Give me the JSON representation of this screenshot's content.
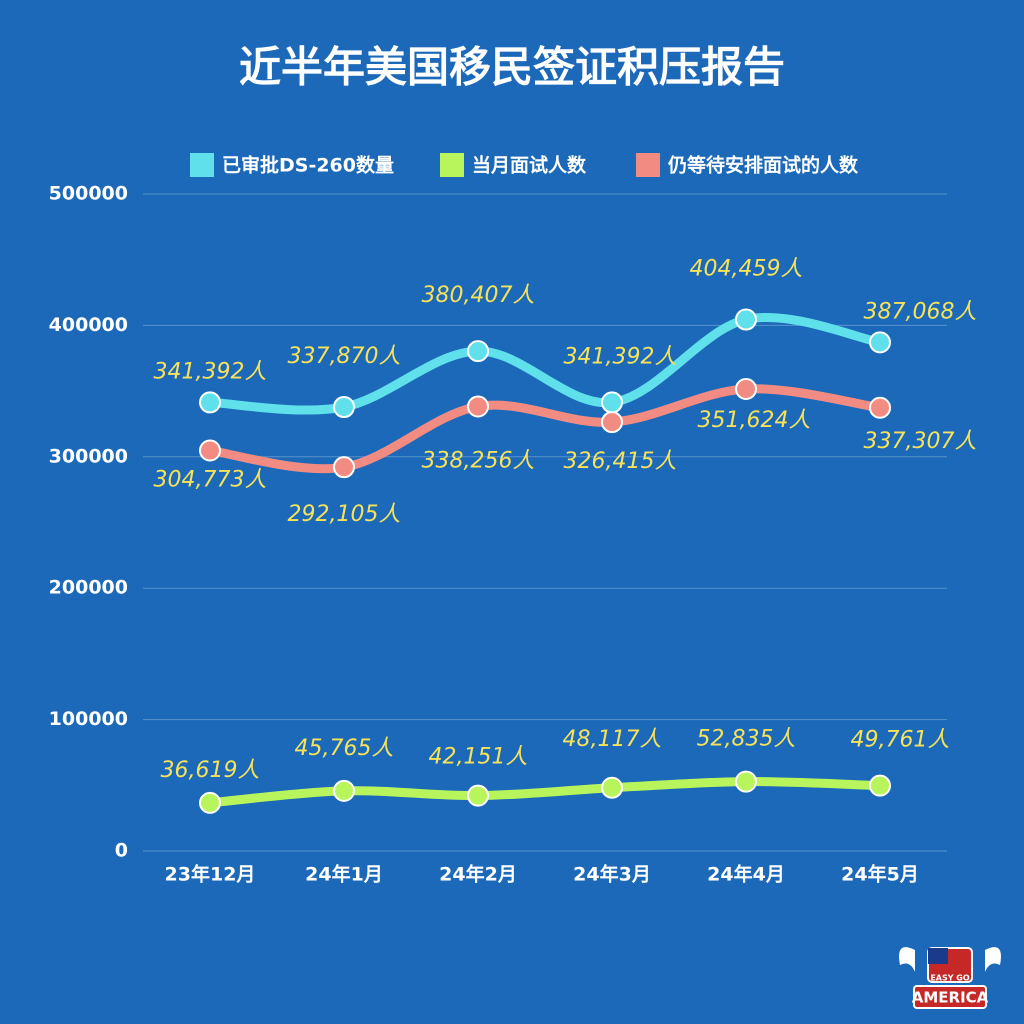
{
  "chart_data": {
    "type": "line",
    "title": "近半年美国移民签证积压报告",
    "categories": [
      "23年12月",
      "24年1月",
      "24年2月",
      "24年3月",
      "24年4月",
      "24年5月"
    ],
    "series": [
      {
        "name": "已审批DS-260数量",
        "color": "#5fe0ea",
        "values": [
          341392,
          337870,
          380407,
          341392,
          404459,
          387068
        ],
        "value_labels": [
          "341,392人",
          "337,870人",
          "380,407人",
          "341,392人",
          "404,459人",
          "387,068人"
        ]
      },
      {
        "name": "当月面试人数",
        "color": "#b8f55c",
        "values": [
          36619,
          45765,
          42151,
          48117,
          52835,
          49761
        ],
        "value_labels": [
          "36,619人",
          "45,765人",
          "42,151人",
          "48,117人",
          "52,835人",
          "49,761人"
        ]
      },
      {
        "name": "仍等待安排面试的人数",
        "color": "#f28b82",
        "values": [
          304773,
          292105,
          338256,
          326415,
          351624,
          337307
        ],
        "value_labels": [
          "304,773人",
          "292,105人",
          "338,256人",
          "326,415人",
          "351,624人",
          "337,307人"
        ]
      }
    ],
    "ylim": [
      0,
      500000
    ],
    "yticks": [
      0,
      100000,
      200000,
      300000,
      400000,
      500000
    ],
    "grid": true,
    "legend": "top"
  },
  "logo": {
    "top": "EASY GO",
    "bottom": "AMERICA"
  }
}
